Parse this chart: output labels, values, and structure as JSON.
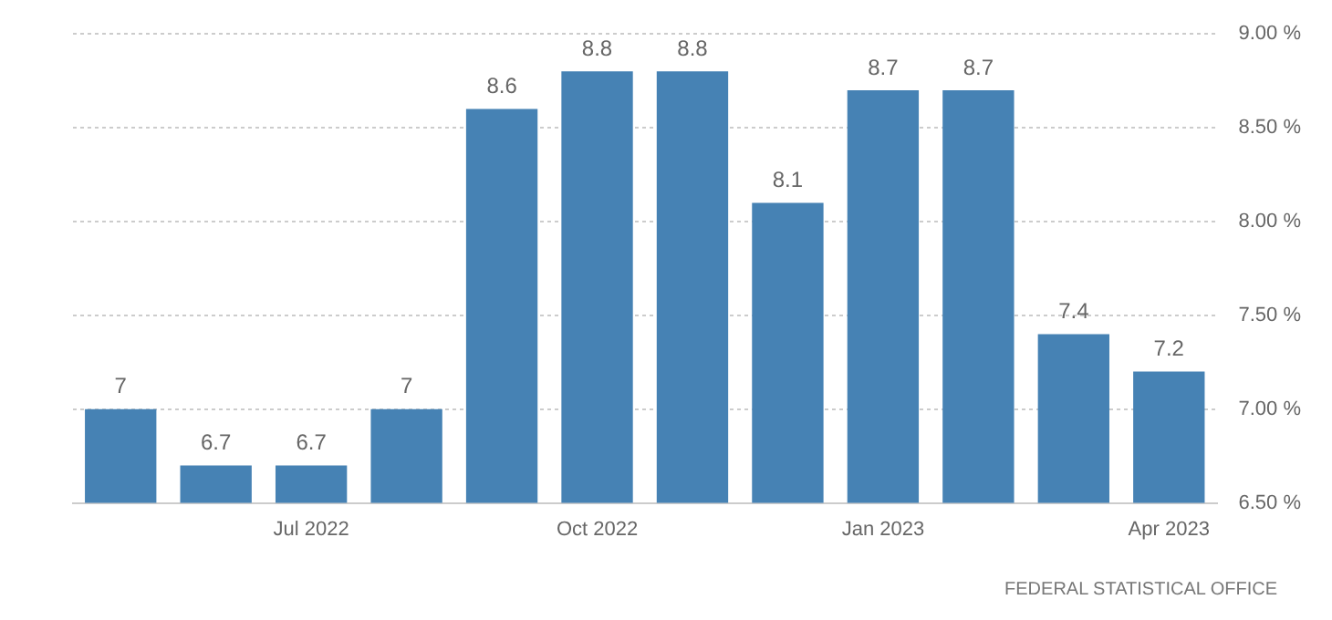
{
  "chart_data": {
    "type": "bar",
    "categories": [
      null,
      null,
      "Jul 2022",
      null,
      null,
      "Oct 2022",
      null,
      null,
      "Jan 2023",
      null,
      null,
      "Apr 2023"
    ],
    "values": [
      7,
      6.7,
      6.7,
      7,
      8.6,
      8.8,
      8.8,
      8.1,
      8.7,
      8.7,
      7.4,
      7.2
    ],
    "color": "#4682b4",
    "ylim": [
      6.5,
      9
    ],
    "yticks": [
      {
        "value": 6.5,
        "label": "6.50 %"
      },
      {
        "value": 7,
        "label": "7.00 %"
      },
      {
        "value": 7.5,
        "label": "7.50 %"
      },
      {
        "value": 8,
        "label": "8.00 %"
      },
      {
        "value": 8.5,
        "label": "8.50 %"
      },
      {
        "value": 9,
        "label": "9.00 %"
      }
    ],
    "grid": "y",
    "data_labels": true,
    "legend": false,
    "annotations": [
      "FEDERAL STATISTICAL OFFICE"
    ]
  }
}
